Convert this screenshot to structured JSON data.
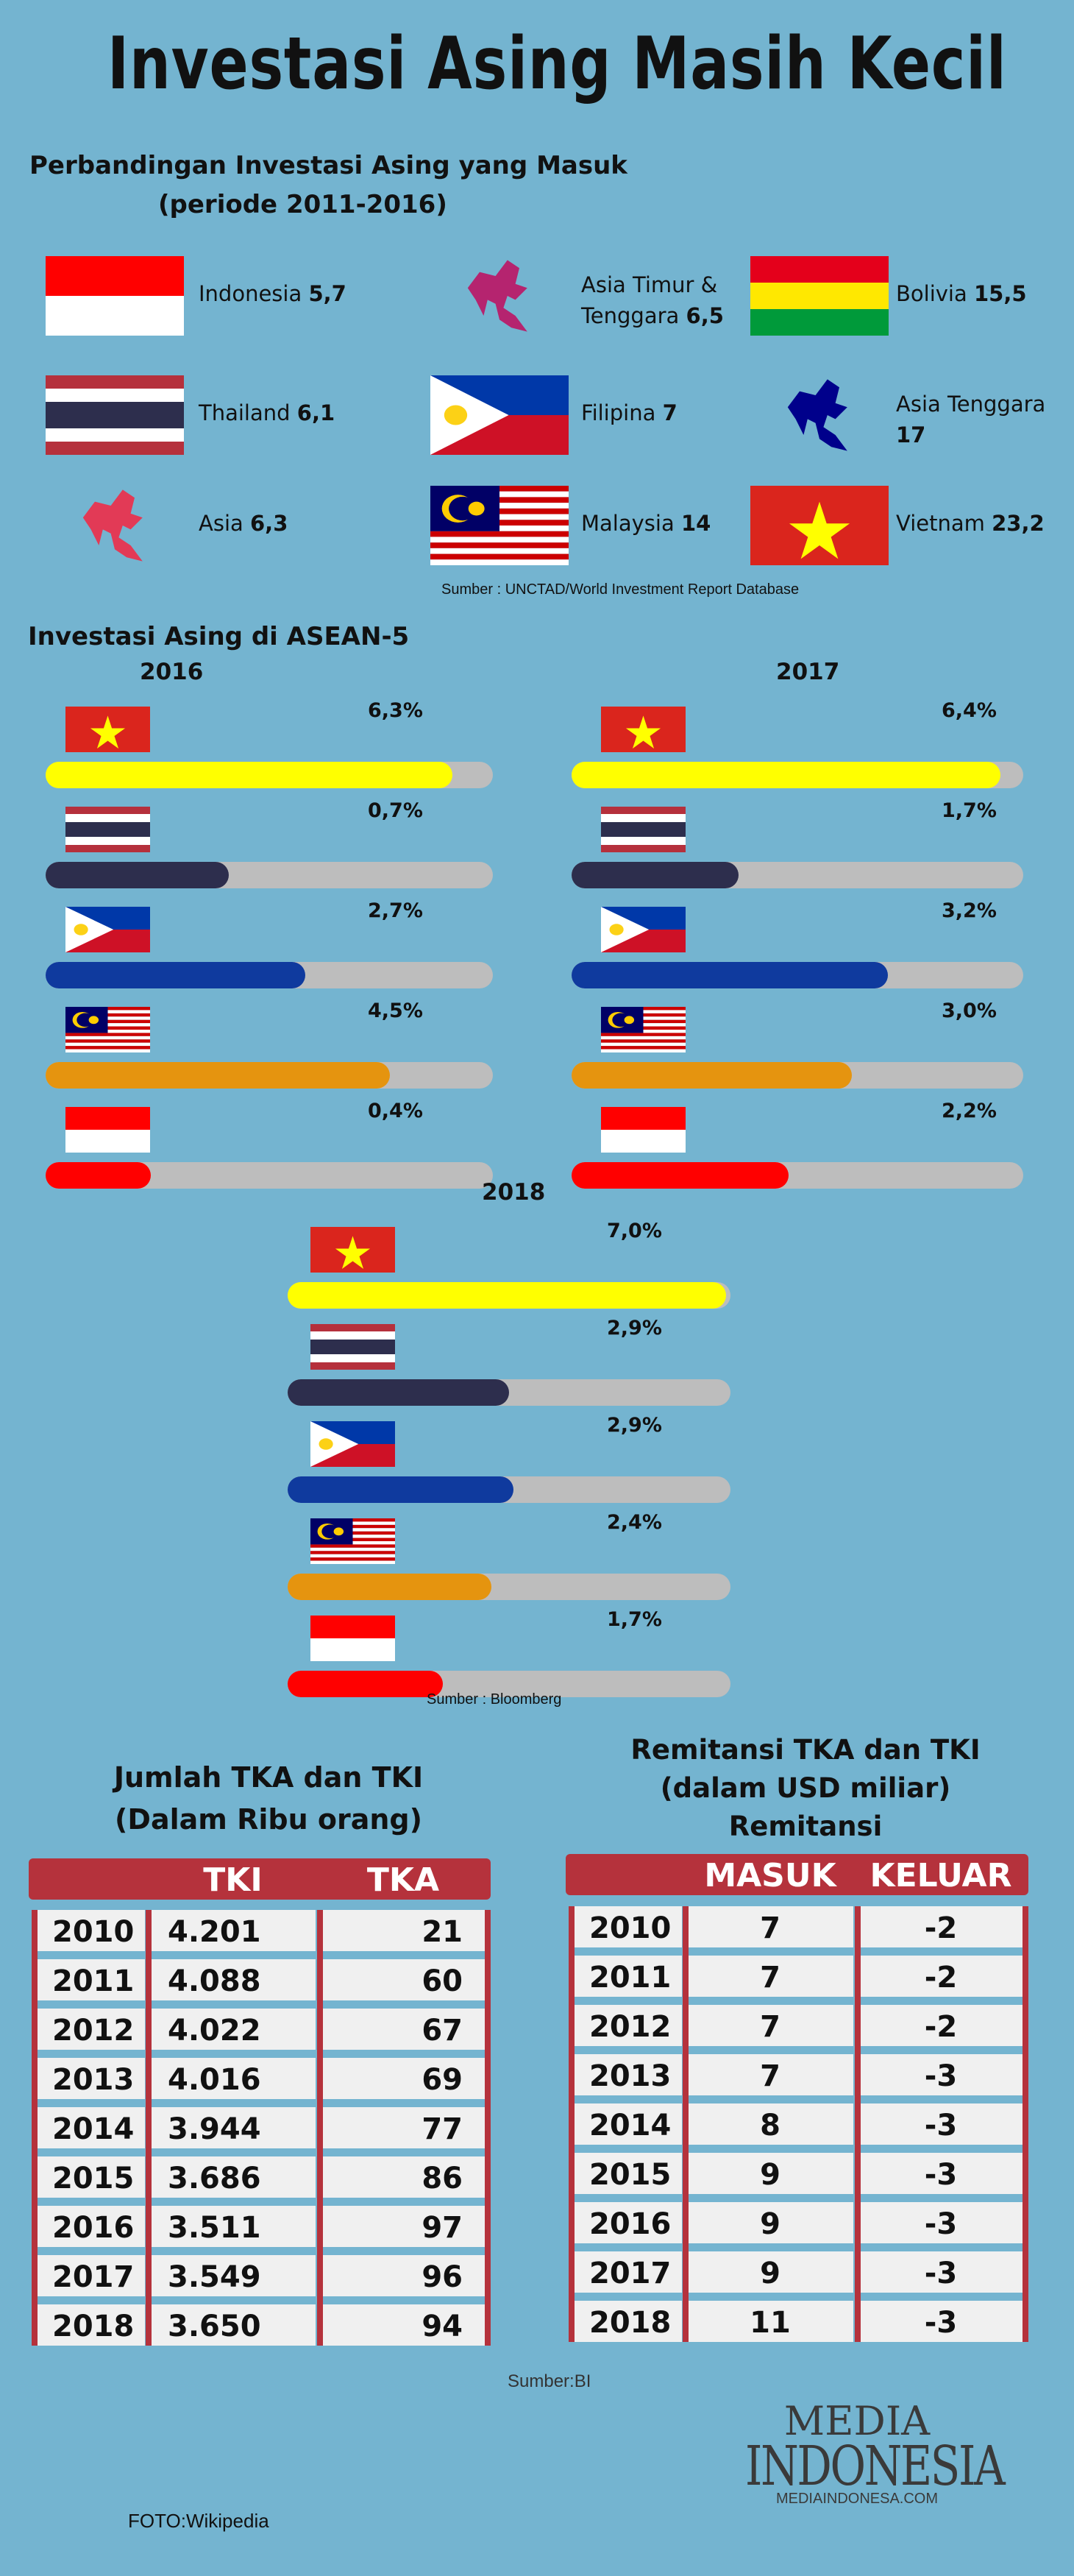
{
  "title": "Investasi Asing Masih Kecil",
  "comparison": {
    "heading": "Perbandingan Investasi Asing yang Masuk",
    "period": "(periode 2011-2016)",
    "items": [
      {
        "icon": "flag-indonesia",
        "name": "Indonesia",
        "value": "5,7"
      },
      {
        "icon": "map-east-southeast-asia",
        "name": "Asia Timur & Tenggara",
        "value": "6,5"
      },
      {
        "icon": "flag-bolivia",
        "name": "Bolivia",
        "value": "15,5"
      },
      {
        "icon": "flag-thailand",
        "name": "Thailand",
        "value": "6,1"
      },
      {
        "icon": "flag-philippines",
        "name": "Filipina",
        "value": "7"
      },
      {
        "icon": "map-southeast-asia",
        "name": "Asia Tenggara",
        "value": "17"
      },
      {
        "icon": "map-asia",
        "name": "Asia",
        "value": "6,3"
      },
      {
        "icon": "flag-malaysia",
        "name": "Malaysia",
        "value": "14"
      },
      {
        "icon": "flag-vietnam",
        "name": "Vietnam",
        "value": "23,2"
      }
    ],
    "source": "Sumber : UNCTAD/World Investment Report Database"
  },
  "asean": {
    "heading": "Investasi Asing di ASEAN-5",
    "colors": {
      "vietnam": "#ffff00",
      "thailand": "#2d2e4d",
      "philippines": "#0f3a9e",
      "malaysia": "#e5940f",
      "indonesia": "#ff0000",
      "track": "#bdbdbd"
    },
    "years": [
      {
        "year": "2016",
        "rows": [
          {
            "country": "vietnam",
            "label": "6,3%",
            "fill": 0.91
          },
          {
            "country": "thailand",
            "label": "0,7%",
            "fill": 0.41
          },
          {
            "country": "philippines",
            "label": "2,7%",
            "fill": 0.58
          },
          {
            "country": "malaysia",
            "label": "4,5%",
            "fill": 0.77
          },
          {
            "country": "indonesia",
            "label": "0,4%",
            "fill": 0.235
          }
        ]
      },
      {
        "year": "2017",
        "rows": [
          {
            "country": "vietnam",
            "label": "6,4%",
            "fill": 0.95
          },
          {
            "country": "thailand",
            "label": "1,7%",
            "fill": 0.37
          },
          {
            "country": "philippines",
            "label": "3,2%",
            "fill": 0.7
          },
          {
            "country": "malaysia",
            "label": "3,0%",
            "fill": 0.62
          },
          {
            "country": "indonesia",
            "label": "2,2%",
            "fill": 0.48
          }
        ]
      },
      {
        "year": "2018",
        "rows": [
          {
            "country": "vietnam",
            "label": "7,0%",
            "fill": 0.99
          },
          {
            "country": "thailand",
            "label": "2,9%",
            "fill": 0.5
          },
          {
            "country": "philippines",
            "label": "2,9%",
            "fill": 0.51
          },
          {
            "country": "malaysia",
            "label": "2,4%",
            "fill": 0.46
          },
          {
            "country": "indonesia",
            "label": "1,7%",
            "fill": 0.35
          }
        ]
      }
    ],
    "source": "Sumber : Bloomberg"
  },
  "workers": {
    "title1": "Jumlah TKA dan TKI",
    "title2": "(Dalam Ribu orang)",
    "headers": [
      "",
      "TKI",
      "TKA"
    ],
    "rows": [
      [
        "2010",
        "4.201",
        "21"
      ],
      [
        "2011",
        "4.088",
        "60"
      ],
      [
        "2012",
        "4.022",
        "67"
      ],
      [
        "2013",
        "4.016",
        "69"
      ],
      [
        "2014",
        "3.944",
        "77"
      ],
      [
        "2015",
        "3.686",
        "86"
      ],
      [
        "2016",
        "3.511",
        "97"
      ],
      [
        "2017",
        "3.549",
        "96"
      ],
      [
        "2018",
        "3.650",
        "94"
      ]
    ]
  },
  "remit": {
    "title1": "Remitansi TKA dan TKI",
    "title2": "(dalam USD miliar)",
    "title3": "Remitansi",
    "headers": [
      "",
      "MASUK",
      "KELUAR"
    ],
    "rows": [
      [
        "2010",
        "7",
        "-2"
      ],
      [
        "2011",
        "7",
        "-2"
      ],
      [
        "2012",
        "7",
        "-2"
      ],
      [
        "2013",
        "7",
        "-3"
      ],
      [
        "2014",
        "8",
        "-3"
      ],
      [
        "2015",
        "9",
        "-3"
      ],
      [
        "2016",
        "9",
        "-3"
      ],
      [
        "2017",
        "9",
        "-3"
      ],
      [
        "2018",
        "11",
        "-3"
      ]
    ]
  },
  "source_bi": "Sumber:BI",
  "logo": {
    "line1": "MEDIA",
    "line2": "INDONESIA",
    "url": "MEDIAINDONESA.COM"
  },
  "photo_credit": "FOTO:Wikipedia"
}
